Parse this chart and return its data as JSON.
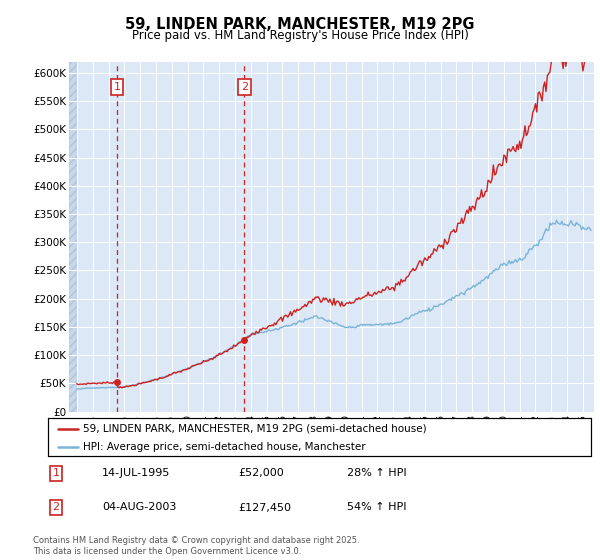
{
  "title": "59, LINDEN PARK, MANCHESTER, M19 2PG",
  "subtitle": "Price paid vs. HM Land Registry's House Price Index (HPI)",
  "legend_line1": "59, LINDEN PARK, MANCHESTER, M19 2PG (semi-detached house)",
  "legend_line2": "HPI: Average price, semi-detached house, Manchester",
  "footnote": "Contains HM Land Registry data © Crown copyright and database right 2025.\nThis data is licensed under the Open Government Licence v3.0.",
  "annotation1_date": "14-JUL-1995",
  "annotation1_price": "£52,000",
  "annotation1_hpi": "28% ↑ HPI",
  "annotation2_date": "04-AUG-2003",
  "annotation2_price": "£127,450",
  "annotation2_hpi": "54% ↑ HPI",
  "purchase1_year": 1995.54,
  "purchase1_price": 52000,
  "purchase2_year": 2003.59,
  "purchase2_price": 127450,
  "hpi_color": "#7ab4d8",
  "price_color": "#cc2222",
  "annotation_box_color": "#cc2222",
  "bg_color": "#dce8f5",
  "ylim_min": 0,
  "ylim_max": 620000,
  "xlim_min": 1992.5,
  "xlim_max": 2025.7
}
